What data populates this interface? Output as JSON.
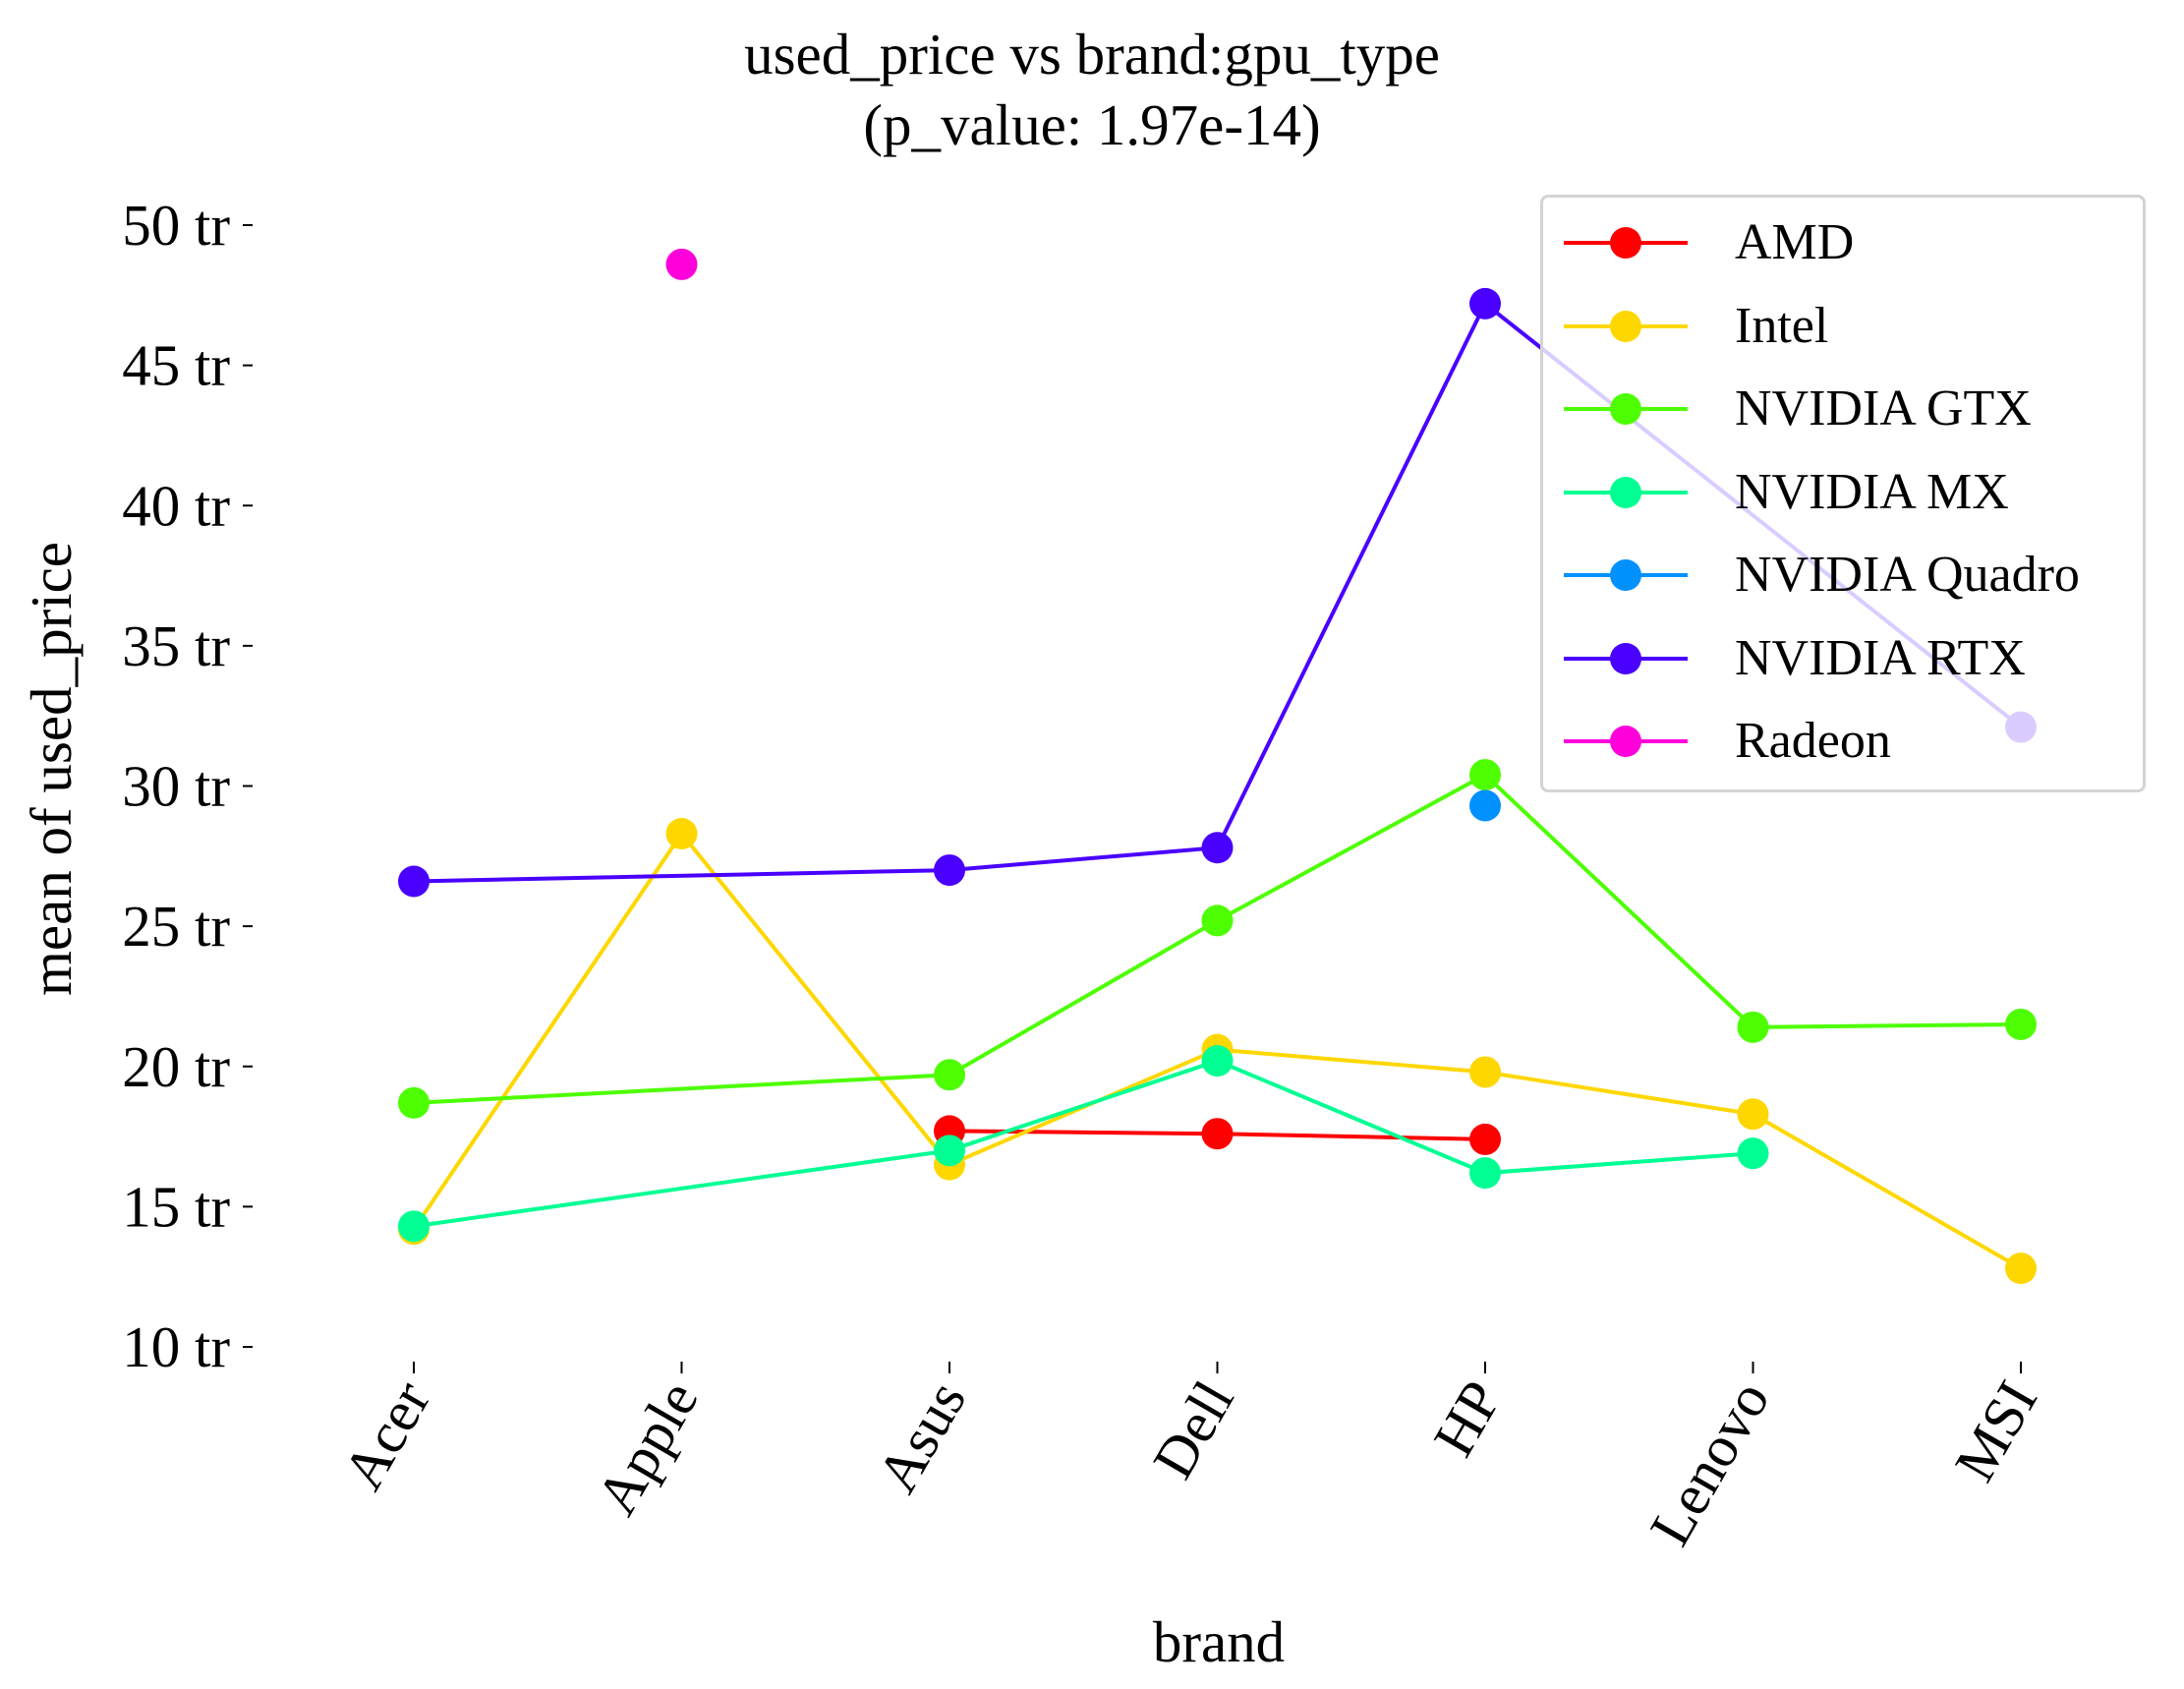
{
  "chart_data": {
    "type": "line",
    "title": "used_price vs brand:gpu_type",
    "subtitle": "(p_value: 1.97e-14)",
    "xlabel": "brand",
    "ylabel": "mean of used_price",
    "categories": [
      "Acer",
      "Apple",
      "Asus",
      "Dell",
      "HP",
      "Lenovo",
      "MSI"
    ],
    "ylim": [
      10,
      50
    ],
    "yticks": [
      10,
      15,
      20,
      25,
      30,
      35,
      40,
      45,
      50
    ],
    "ytick_labels": [
      "10 tr",
      "15 tr",
      "20 tr",
      "25 tr",
      "30 tr",
      "35 tr",
      "40 tr",
      "45 tr",
      "50 tr"
    ],
    "grid": false,
    "legend_position": "top-right",
    "series": [
      {
        "name": "AMD",
        "color": "#ff0000",
        "values": [
          null,
          null,
          17.7,
          17.6,
          17.4,
          null,
          null
        ]
      },
      {
        "name": "Intel",
        "color": "#ffd700",
        "values": [
          14.2,
          28.3,
          16.5,
          20.6,
          19.8,
          18.3,
          12.8
        ]
      },
      {
        "name": "NVIDIA GTX",
        "color": "#4dff00",
        "values": [
          18.7,
          null,
          19.7,
          25.2,
          30.4,
          21.4,
          21.5
        ]
      },
      {
        "name": "NVIDIA MX",
        "color": "#00ff93",
        "values": [
          14.3,
          null,
          17.0,
          20.2,
          16.2,
          16.9,
          null
        ]
      },
      {
        "name": "NVIDIA Quadro",
        "color": "#0091ff",
        "values": [
          null,
          null,
          null,
          null,
          29.3,
          null,
          null
        ]
      },
      {
        "name": "NVIDIA RTX",
        "color": "#4900ff",
        "values": [
          26.6,
          null,
          27.0,
          27.8,
          47.2,
          null,
          32.1
        ]
      },
      {
        "name": "Radeon",
        "color": "#ff00db",
        "values": [
          null,
          48.6,
          null,
          null,
          null,
          null,
          null
        ]
      }
    ]
  }
}
